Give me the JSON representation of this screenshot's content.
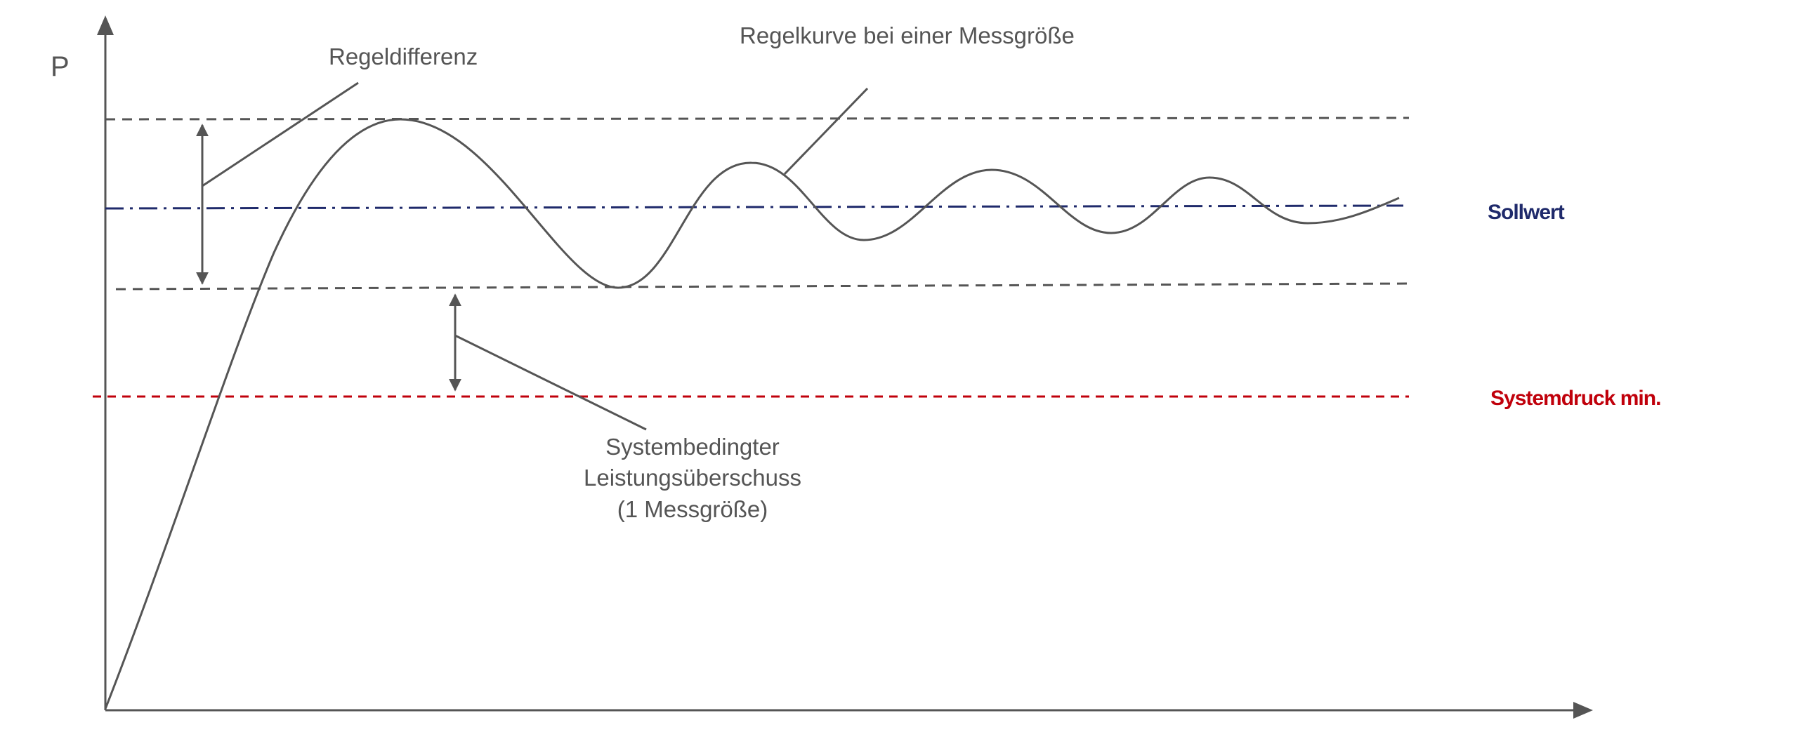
{
  "diagram": {
    "axis_label_y": "P",
    "labels": {
      "regeldifferenz": "Regeldifferenz",
      "regelkurve": "Regelkurve bei einer Messgröße",
      "sollwert": "Sollwert",
      "systemdruck": "Systemdruck min.",
      "ueberschuss_line1": "Systembedingter",
      "ueberschuss_line2": "Leistungsüberschuss",
      "ueberschuss_line3": "(1 Messgröße)"
    },
    "colors": {
      "axis": "#555555",
      "curve": "#555555",
      "dashed_band": "#555555",
      "setpoint_line": "#1f2a6b",
      "min_pressure_line": "#c0000b",
      "setpoint_label": "#1f2a6b",
      "min_pressure_label": "#c0000b"
    }
  }
}
